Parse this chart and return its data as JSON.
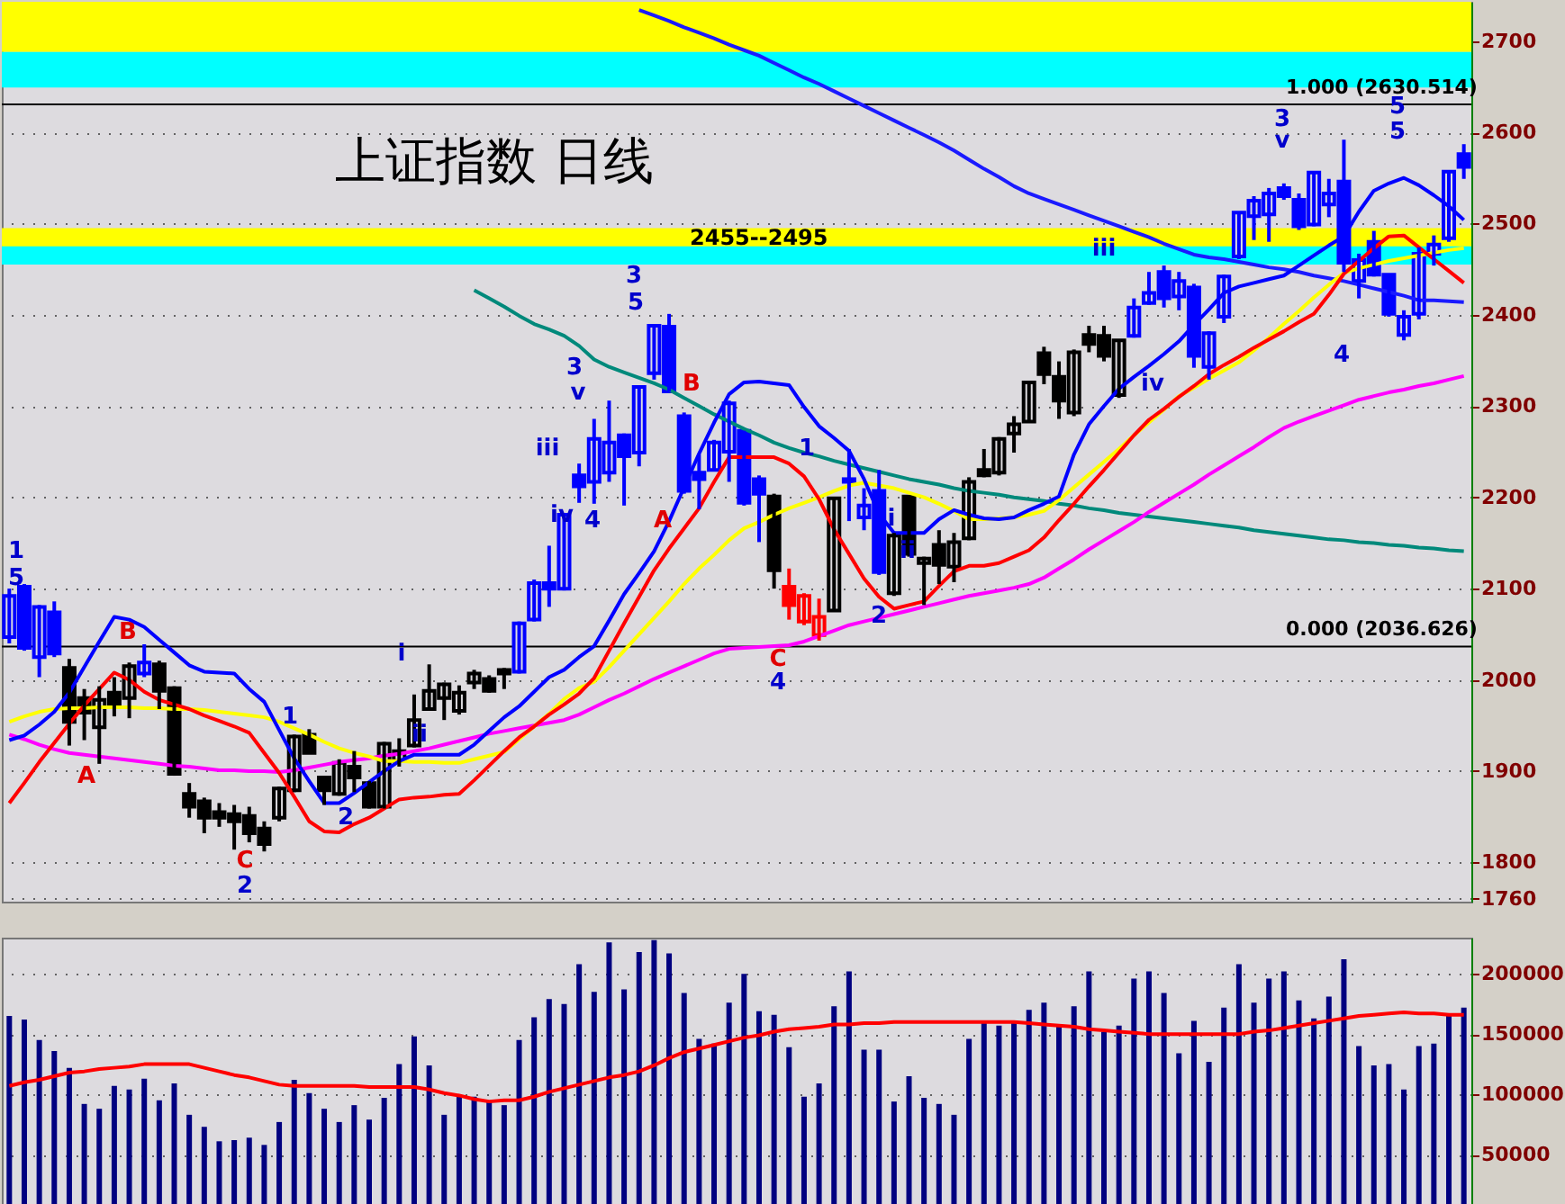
{
  "chart_data": [
    {
      "type": "candlestick",
      "title": "上证指数  日线",
      "tick_labels": "y",
      "grid": "y",
      "ylim": [
        1757,
        2743
      ],
      "yticks": [
        1760,
        1800,
        1900,
        2000,
        2100,
        2200,
        2300,
        2400,
        2500,
        2600,
        2700
      ],
      "categories": [
        null,
        null,
        null,
        null,
        null,
        null,
        null,
        null,
        null,
        null,
        null,
        null,
        null,
        null,
        null,
        null,
        null,
        null,
        null,
        null,
        null,
        null,
        null,
        null,
        null,
        null,
        null,
        null,
        null,
        null,
        null,
        null,
        null,
        null,
        null,
        null,
        null,
        null,
        null,
        null,
        null,
        null,
        null,
        null,
        null,
        null,
        null,
        null,
        null,
        null,
        null,
        null,
        null,
        null,
        null,
        null,
        null,
        null,
        null,
        null,
        null,
        null,
        null,
        null,
        null,
        null,
        null,
        null,
        null,
        null,
        null,
        null,
        null,
        null,
        null,
        null,
        null,
        null,
        null,
        null,
        null,
        null,
        null,
        null,
        null,
        null,
        null,
        null,
        null,
        null,
        null,
        null,
        null,
        null,
        null,
        null,
        null,
        null
      ],
      "ohlc": [
        [
          2047,
          2100,
          2040,
          2092
        ],
        [
          2102,
          2105,
          2032,
          2035
        ],
        [
          2025,
          2082,
          2003,
          2080
        ],
        [
          2074,
          2086,
          2025,
          2029
        ],
        [
          2013,
          2023,
          1928,
          1954
        ],
        [
          1980,
          1990,
          1934,
          1964
        ],
        [
          1948,
          1993,
          1908,
          1978
        ],
        [
          1986,
          2003,
          1960,
          1974
        ],
        [
          1980,
          2019,
          1958,
          2015
        ],
        [
          2007,
          2039,
          2003,
          2019
        ],
        [
          2017,
          2021,
          1968,
          1988
        ],
        [
          1991,
          1993,
          1895,
          1897
        ],
        [
          1875,
          1887,
          1849,
          1861
        ],
        [
          1867,
          1871,
          1832,
          1849
        ],
        [
          1855,
          1865,
          1839,
          1849
        ],
        [
          1853,
          1863,
          1814,
          1845
        ],
        [
          1851,
          1861,
          1822,
          1832
        ],
        [
          1837,
          1845,
          1812,
          1820
        ],
        [
          1849,
          1883,
          1845,
          1881
        ],
        [
          1879,
          1940,
          1877,
          1938
        ],
        [
          1940,
          1946,
          1920,
          1920
        ],
        [
          1893,
          1895,
          1863,
          1879
        ],
        [
          1875,
          1913,
          1873,
          1909
        ],
        [
          1905,
          1922,
          1877,
          1893
        ],
        [
          1887,
          1889,
          1859,
          1861
        ],
        [
          1861,
          1932,
          1859,
          1930
        ],
        [
          1911,
          1936,
          1905,
          1922
        ],
        [
          1928,
          1984,
          1926,
          1956
        ],
        [
          1968,
          2017,
          1968,
          1988
        ],
        [
          1980,
          1997,
          1956,
          1995
        ],
        [
          1966,
          1994,
          1962,
          1986
        ],
        [
          1997,
          2011,
          1990,
          2007
        ],
        [
          2001,
          2005,
          1986,
          1988
        ],
        [
          2011,
          2013,
          1990,
          2007
        ],
        [
          2009,
          2064,
          2007,
          2062
        ],
        [
          2066,
          2110,
          2064,
          2106
        ],
        [
          2106,
          2147,
          2080,
          2100
        ],
        [
          2100,
          2183,
          2098,
          2181
        ],
        [
          2224,
          2237,
          2194,
          2212
        ],
        [
          2217,
          2286,
          2193,
          2264
        ],
        [
          2227,
          2306,
          2217,
          2260
        ],
        [
          2268,
          2270,
          2191,
          2245
        ],
        [
          2249,
          2321,
          2234,
          2321
        ],
        [
          2336,
          2388,
          2329,
          2388
        ],
        [
          2387,
          2401,
          2316,
          2316
        ],
        [
          2289,
          2293,
          2204,
          2207
        ],
        [
          2227,
          2247,
          2187,
          2220
        ],
        [
          2230,
          2263,
          2230,
          2260
        ],
        [
          2250,
          2306,
          2217,
          2303
        ],
        [
          2273,
          2273,
          2191,
          2194
        ],
        [
          2220,
          2224,
          2151,
          2204
        ],
        [
          2201,
          2204,
          2100,
          2120
        ],
        [
          2102,
          2122,
          2066,
          2082
        ],
        [
          2064,
          2095,
          2060,
          2092
        ],
        [
          2049,
          2089,
          2043,
          2069
        ],
        [
          2076,
          2199,
          2076,
          2199
        ],
        [
          2220,
          2253,
          2174,
          2217
        ],
        [
          2178,
          2210,
          2164,
          2191
        ],
        [
          2207,
          2230,
          2115,
          2118
        ],
        [
          2095,
          2161,
          2092,
          2158
        ],
        [
          2201,
          2201,
          2135,
          2138
        ],
        [
          2128,
          2135,
          2082,
          2133
        ],
        [
          2148,
          2164,
          2105,
          2126
        ],
        [
          2124,
          2161,
          2107,
          2151
        ],
        [
          2155,
          2222,
          2153,
          2217
        ],
        [
          2230,
          2253,
          2222,
          2224
        ],
        [
          2227,
          2266,
          2224,
          2264
        ],
        [
          2270,
          2289,
          2249,
          2280
        ],
        [
          2283,
          2326,
          2282,
          2326
        ],
        [
          2358,
          2365,
          2324,
          2335
        ],
        [
          2332,
          2349,
          2286,
          2306
        ],
        [
          2293,
          2362,
          2289,
          2359
        ],
        [
          2378,
          2388,
          2359,
          2368
        ],
        [
          2377,
          2388,
          2349,
          2355
        ],
        [
          2312,
          2372,
          2309,
          2372
        ],
        [
          2377,
          2418,
          2375,
          2408
        ],
        [
          2413,
          2447,
          2411,
          2424
        ],
        [
          2447,
          2454,
          2408,
          2418
        ],
        [
          2420,
          2447,
          2405,
          2437
        ],
        [
          2430,
          2434,
          2342,
          2355
        ],
        [
          2343,
          2382,
          2329,
          2380
        ],
        [
          2398,
          2444,
          2391,
          2442
        ],
        [
          2464,
          2512,
          2461,
          2512
        ],
        [
          2508,
          2530,
          2482,
          2525
        ],
        [
          2510,
          2539,
          2480,
          2533
        ],
        [
          2539,
          2544,
          2526,
          2530
        ],
        [
          2526,
          2533,
          2493,
          2497
        ],
        [
          2499,
          2556,
          2497,
          2556
        ],
        [
          2521,
          2549,
          2507,
          2533
        ],
        [
          2546,
          2592,
          2447,
          2457
        ],
        [
          2437,
          2467,
          2418,
          2460
        ],
        [
          2480,
          2492,
          2442,
          2444
        ],
        [
          2444,
          2444,
          2398,
          2401
        ],
        [
          2378,
          2405,
          2372,
          2398
        ],
        [
          2401,
          2474,
          2395,
          2467
        ],
        [
          2467,
          2487,
          2454,
          2477
        ],
        [
          2484,
          2557,
          2480,
          2557
        ],
        [
          2576,
          2587,
          2549,
          2562
        ]
      ],
      "colors": [
        "#0000ff",
        "#0000ff",
        "#0000ff",
        "#0000ff",
        "#000000",
        "#000000",
        "#000000",
        "#000000",
        "#000000",
        "#0000ff",
        "#000000",
        "#000000",
        "#000000",
        "#000000",
        "#000000",
        "#000000",
        "#000000",
        "#000000",
        "#000000",
        "#000000",
        "#000000",
        "#000000",
        "#000000",
        "#000000",
        "#000000",
        "#000000",
        "#000000",
        "#000000",
        "#000000",
        "#000000",
        "#000000",
        "#000000",
        "#000000",
        "#000000",
        "#0000ff",
        "#0000ff",
        "#0000ff",
        "#0000ff",
        "#0000ff",
        "#0000ff",
        "#0000ff",
        "#0000ff",
        "#0000ff",
        "#0000ff",
        "#0000ff",
        "#0000ff",
        "#0000ff",
        "#0000ff",
        "#0000ff",
        "#0000ff",
        "#0000ff",
        "#000000",
        "#ff0000",
        "#ff0000",
        "#ff0000",
        "#000000",
        "#0000ff",
        "#0000ff",
        "#0000ff",
        "#000000",
        "#000000",
        "#000000",
        "#000000",
        "#000000",
        "#000000",
        "#000000",
        "#000000",
        "#000000",
        "#000000",
        "#000000",
        "#000000",
        "#000000",
        "#000000",
        "#000000",
        "#000000",
        "#0000ff",
        "#0000ff",
        "#0000ff",
        "#0000ff",
        "#0000ff",
        "#0000ff",
        "#0000ff",
        "#0000ff",
        "#0000ff",
        "#0000ff",
        "#0000ff",
        "#0000ff",
        "#0000ff",
        "#0000ff",
        "#0000ff",
        "#0000ff",
        "#0000ff",
        "#0000ff",
        "#0000ff",
        "#0000ff",
        "#0000ff",
        "#0000ff",
        "#0000ff"
      ],
      "series": [
        {
          "type": "line",
          "color": "#00897b",
          "values": [
            null,
            null,
            null,
            null,
            null,
            null,
            null,
            null,
            null,
            null,
            null,
            null,
            null,
            null,
            null,
            null,
            null,
            null,
            null,
            null,
            null,
            null,
            null,
            null,
            null,
            null,
            null,
            null,
            null,
            null,
            null,
            2427,
            2418,
            2409,
            2399,
            2390,
            2384,
            2377,
            2366,
            2351,
            2343,
            2337,
            2331,
            2325,
            2318,
            2309,
            2300,
            2291,
            2283,
            2275,
            2268,
            2260,
            2254,
            2249,
            2245,
            2240,
            2236,
            2232,
            2228,
            2224,
            2220,
            2217,
            2214,
            2210,
            2207,
            2205,
            2203,
            2200,
            2198,
            2196,
            2193,
            2191,
            2188,
            2186,
            2183,
            2181,
            2179,
            2177,
            2175,
            2173,
            2171,
            2169,
            2167,
            2164,
            2162,
            2160,
            2158,
            2156,
            2154,
            2153,
            2151,
            2150,
            2148,
            2147,
            2145,
            2144,
            2142,
            2141
          ]
        },
        {
          "type": "line",
          "color": "#1a1aff",
          "values": [
            null,
            null,
            null,
            null,
            null,
            null,
            null,
            null,
            null,
            null,
            null,
            null,
            null,
            null,
            null,
            null,
            null,
            null,
            null,
            null,
            null,
            null,
            null,
            null,
            null,
            null,
            null,
            null,
            null,
            null,
            null,
            null,
            null,
            null,
            null,
            null,
            null,
            null,
            null,
            null,
            null,
            null,
            2734,
            2728,
            2722,
            2715,
            2709,
            2703,
            2696,
            2690,
            2684,
            2676,
            2668,
            2660,
            2653,
            2645,
            2637,
            2629,
            2621,
            2613,
            2605,
            2597,
            2589,
            2580,
            2570,
            2560,
            2551,
            2541,
            2533,
            2527,
            2521,
            2515,
            2509,
            2503,
            2497,
            2491,
            2485,
            2478,
            2472,
            2466,
            2463,
            2461,
            2458,
            2455,
            2452,
            2450,
            2447,
            2443,
            2440,
            2437,
            2433,
            2429,
            2425,
            2421,
            2416,
            2416,
            2415,
            2414
          ]
        },
        {
          "type": "line",
          "color": "#ff00ff",
          "values": [
            1940,
            1935,
            1929,
            1924,
            1920,
            1918,
            1916,
            1914,
            1912,
            1910,
            1908,
            1906,
            1905,
            1903,
            1901,
            1901,
            1900,
            1900,
            1899,
            1901,
            1904,
            1907,
            1910,
            1912,
            1914,
            1917,
            1919,
            1922,
            1925,
            1929,
            1933,
            1937,
            1941,
            1944,
            1947,
            1950,
            1953,
            1956,
            1962,
            1970,
            1978,
            1985,
            1993,
            2001,
            2008,
            2015,
            2022,
            2029,
            2034,
            2035,
            2036,
            2037,
            2038,
            2042,
            2048,
            2054,
            2060,
            2064,
            2068,
            2072,
            2076,
            2080,
            2084,
            2088,
            2092,
            2095,
            2098,
            2101,
            2105,
            2112,
            2122,
            2132,
            2143,
            2153,
            2163,
            2173,
            2184,
            2194,
            2204,
            2214,
            2225,
            2235,
            2245,
            2255,
            2266,
            2276,
            2283,
            2289,
            2295,
            2301,
            2307,
            2311,
            2315,
            2318,
            2322,
            2325,
            2329,
            2333
          ]
        },
        {
          "type": "line",
          "color": "#ffff00",
          "values": [
            1954,
            1960,
            1965,
            1968,
            1969,
            1969,
            1970,
            1970,
            1970,
            1969,
            1969,
            1968,
            1968,
            1967,
            1965,
            1963,
            1961,
            1959,
            1954,
            1947,
            1940,
            1932,
            1925,
            1920,
            1916,
            1911,
            1911,
            1910,
            1910,
            1909,
            1909,
            1913,
            1917,
            1921,
            1935,
            1949,
            1963,
            1979,
            1991,
            1998,
            2014,
            2032,
            2050,
            2068,
            2086,
            2105,
            2122,
            2137,
            2153,
            2166,
            2173,
            2181,
            2188,
            2194,
            2200,
            2207,
            2213,
            2216,
            2213,
            2210,
            2205,
            2200,
            2193,
            2185,
            2176,
            2176,
            2177,
            2178,
            2181,
            2185,
            2197,
            2211,
            2225,
            2239,
            2253,
            2268,
            2282,
            2296,
            2311,
            2320,
            2330,
            2339,
            2348,
            2361,
            2375,
            2390,
            2404,
            2419,
            2433,
            2446,
            2451,
            2455,
            2459,
            2462,
            2465,
            2468,
            2471,
            2473
          ]
        },
        {
          "type": "line",
          "color": "#ff0000",
          "values": [
            1865,
            1887,
            1910,
            1931,
            1952,
            1972,
            1990,
            2008,
            2000,
            1987,
            1978,
            1973,
            1968,
            1961,
            1955,
            1949,
            1942,
            1920,
            1898,
            1872,
            1845,
            1834,
            1833,
            1842,
            1849,
            1859,
            1869,
            1871,
            1872,
            1874,
            1875,
            1890,
            1906,
            1922,
            1937,
            1949,
            1962,
            1973,
            1985,
            2002,
            2032,
            2062,
            2091,
            2120,
            2144,
            2166,
            2188,
            2217,
            2244,
            2244,
            2244,
            2244,
            2237,
            2223,
            2198,
            2165,
            2138,
            2111,
            2091,
            2078,
            2082,
            2086,
            2103,
            2119,
            2125,
            2125,
            2128,
            2135,
            2142,
            2156,
            2175,
            2193,
            2212,
            2230,
            2249,
            2268,
            2285,
            2297,
            2310,
            2322,
            2335,
            2345,
            2354,
            2364,
            2373,
            2382,
            2392,
            2401,
            2422,
            2445,
            2459,
            2473,
            2486,
            2487,
            2474,
            2461,
            2448,
            2435
          ]
        },
        {
          "type": "line",
          "color": "#0000ff",
          "values": [
            1934,
            1939,
            1951,
            1965,
            1986,
            2014,
            2042,
            2069,
            2066,
            2058,
            2044,
            2030,
            2016,
            2009,
            2008,
            2007,
            1990,
            1976,
            1945,
            1914,
            1889,
            1865,
            1865,
            1876,
            1888,
            1900,
            1911,
            1918,
            1918,
            1918,
            1918,
            1929,
            1944,
            1959,
            1971,
            1987,
            2003,
            2011,
            2025,
            2037,
            2065,
            2094,
            2117,
            2141,
            2174,
            2211,
            2248,
            2282,
            2313,
            2326,
            2327,
            2325,
            2323,
            2299,
            2278,
            2265,
            2251,
            2220,
            2182,
            2161,
            2161,
            2161,
            2176,
            2186,
            2181,
            2177,
            2176,
            2178,
            2186,
            2193,
            2201,
            2247,
            2280,
            2300,
            2319,
            2332,
            2344,
            2357,
            2371,
            2389,
            2406,
            2424,
            2431,
            2435,
            2439,
            2443,
            2454,
            2465,
            2476,
            2486,
            2513,
            2536,
            2544,
            2550,
            2542,
            2531,
            2519,
            2504
          ]
        }
      ],
      "bands": [
        {
          "axis": "y",
          "from": 2688,
          "to": 2743,
          "color": "#ffff00"
        },
        {
          "axis": "y",
          "from": 2649,
          "to": 2688,
          "color": "#00ffff"
        },
        {
          "axis": "y",
          "from": 2455,
          "to": 2495,
          "label": "2455--2495",
          "color": "#ffff00"
        },
        {
          "axis": "y",
          "from": 2455,
          "to": 2475,
          "color": "#00ffff"
        }
      ],
      "ref_lines": [
        {
          "axis": "y",
          "value": 2630.514,
          "label": "1.000 (2630.514)"
        },
        {
          "axis": "y",
          "value": 2036.626,
          "label": "0.000 (2036.626)"
        }
      ],
      "annotations": [
        "1",
        "5",
        "B",
        "A",
        "C",
        "2",
        "1",
        "2",
        "i",
        "ii",
        "iii",
        "iv",
        "3",
        "v",
        "4",
        "3",
        "5",
        "B",
        "A",
        "C",
        "4",
        "1",
        "2",
        "i",
        "ii",
        "iii",
        "iv",
        "3",
        "v",
        "4",
        "5",
        "5"
      ]
    },
    {
      "type": "bar",
      "tick_labels": "y",
      "grid": "y",
      "ylim": [
        0,
        230000
      ],
      "yticks": [
        50000,
        100000,
        150000,
        200000
      ],
      "categories": [
        null,
        null,
        null,
        null,
        null,
        null,
        null,
        null,
        null,
        null,
        null,
        null,
        null,
        null,
        null,
        null,
        null,
        null,
        null,
        null,
        null,
        null,
        null,
        null,
        null,
        null,
        null,
        null,
        null,
        null,
        null,
        null,
        null,
        null,
        null,
        null,
        null,
        null,
        null,
        null,
        null,
        null,
        null,
        null,
        null,
        null,
        null,
        null,
        null,
        null,
        null,
        null,
        null,
        null,
        null,
        null,
        null,
        null,
        null,
        null,
        null,
        null,
        null,
        null,
        null,
        null,
        null,
        null,
        null,
        null,
        null,
        null,
        null,
        null,
        null,
        null,
        null,
        null,
        null,
        null,
        null,
        null,
        null,
        null,
        null,
        null,
        null,
        null,
        null,
        null,
        null,
        null,
        null,
        null,
        null,
        null,
        null,
        null
      ],
      "series": [
        {
          "color": "#000080",
          "values": [
            165000,
            162000,
            145000,
            136000,
            122000,
            92000,
            88000,
            107000,
            104000,
            113000,
            95000,
            109000,
            83000,
            73000,
            61000,
            62000,
            64000,
            58000,
            77000,
            112000,
            101000,
            88000,
            77000,
            91000,
            79000,
            97000,
            125000,
            148000,
            124000,
            83000,
            100000,
            98000,
            94000,
            91000,
            145000,
            164000,
            179000,
            175000,
            208000,
            185000,
            226000,
            187000,
            218000,
            228000,
            217000,
            184000,
            146000,
            142000,
            176000,
            200000,
            169000,
            166000,
            139000,
            98000,
            109000,
            173000,
            202000,
            137000,
            137000,
            94000,
            115000,
            97000,
            92000,
            83000,
            146000,
            161000,
            157000,
            161000,
            170000,
            176000,
            157000,
            173000,
            202000,
            152000,
            157000,
            196000,
            202000,
            184000,
            134000,
            161000,
            127000,
            172000,
            208000,
            176000,
            196000,
            202000,
            178000,
            163000,
            181000,
            212000,
            140000,
            124000,
            125000,
            104000,
            140000,
            142000,
            166000,
            172000
          ]
        },
        {
          "type": "line",
          "color": "#ff0000",
          "values": [
            107000,
            110000,
            112000,
            115000,
            118000,
            119000,
            121000,
            122000,
            123000,
            125000,
            125000,
            125000,
            125000,
            122000,
            119000,
            116000,
            114000,
            111000,
            108000,
            107000,
            107000,
            107000,
            107000,
            107000,
            106000,
            106000,
            106000,
            106000,
            104000,
            101000,
            99000,
            96000,
            94000,
            95000,
            95000,
            98000,
            102000,
            105000,
            108000,
            111000,
            114000,
            116000,
            119000,
            124000,
            130000,
            135000,
            138000,
            141000,
            144000,
            147000,
            149000,
            152000,
            154000,
            155000,
            156000,
            158000,
            158000,
            159000,
            159000,
            160000,
            160000,
            160000,
            160000,
            160000,
            160000,
            160000,
            160000,
            160000,
            159000,
            158000,
            157000,
            156000,
            154000,
            153000,
            152000,
            151000,
            150000,
            150000,
            150000,
            150000,
            150000,
            150000,
            150000,
            152000,
            153000,
            155000,
            157000,
            159000,
            161000,
            163000,
            165000,
            166000,
            167000,
            168000,
            167000,
            167000,
            166000,
            166000
          ]
        }
      ]
    }
  ]
}
